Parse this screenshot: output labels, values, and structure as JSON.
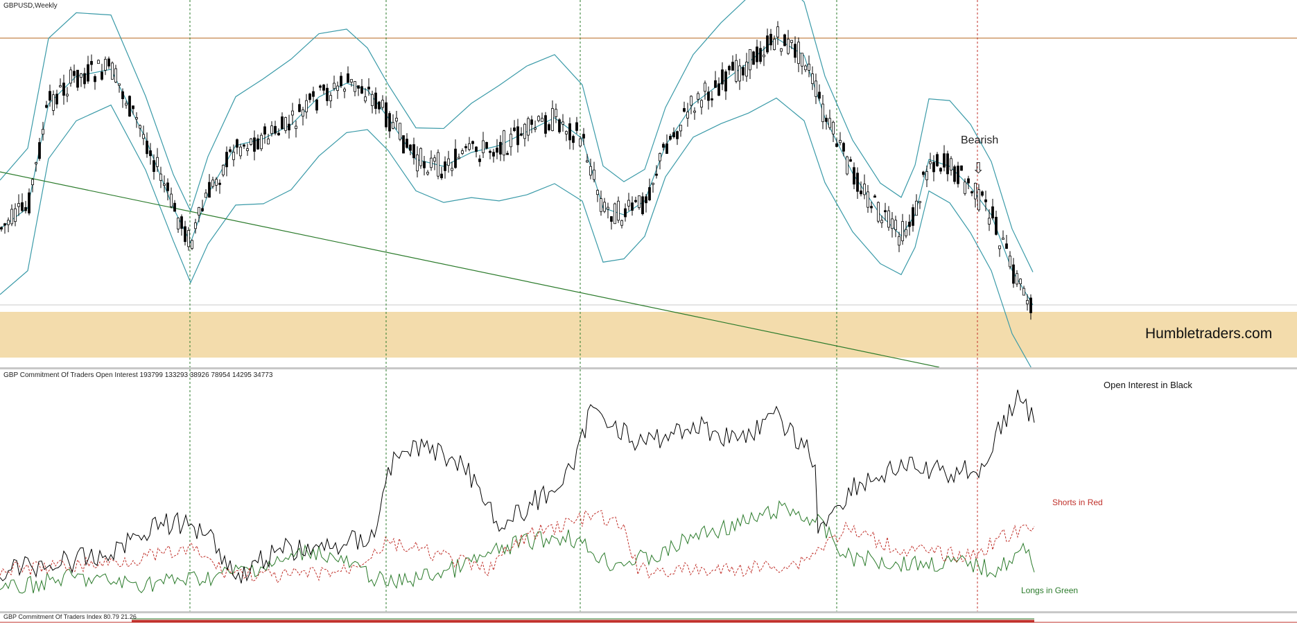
{
  "main_pane": {
    "symbol_label": "GBPUSD,Weekly",
    "annotations": {
      "bearish": "Bearish",
      "watermark": "Humbletraders.com"
    },
    "colors": {
      "bollinger": "#3a9aa8",
      "trendline": "#2a7a2a",
      "resistance": "#b5651d",
      "zone": "#f3dcac",
      "candles": "#000000"
    }
  },
  "oi_pane": {
    "label": "GBP Commitment Of Traders Open Interest 193799 133293 38926 78954 14295 34773",
    "legend_open_interest": "Open Interest in Black",
    "legend_shorts": "Shorts in Red",
    "legend_longs": "Longs in Green",
    "colors": {
      "open_interest": "#000000",
      "shorts": "#c0302a",
      "longs": "#2a7a2a"
    }
  },
  "index_pane": {
    "label": "GBP Commitment Of Traders Index 80.79 21.26"
  }
}
